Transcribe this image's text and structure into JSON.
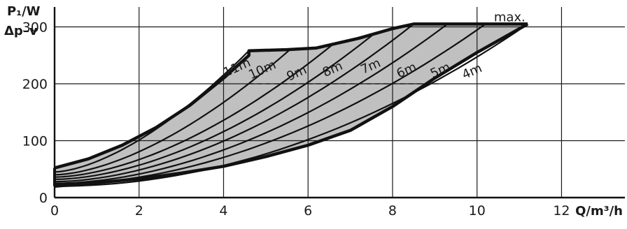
{
  "chart_data": {
    "type": "area",
    "ylabel_top": "P₁/W",
    "ylabel_bottom": "Δp–v",
    "xlabel": "Q/m³/h",
    "xlim": [
      0,
      13.5
    ],
    "ylim": [
      0,
      335
    ],
    "x_ticks": [
      0,
      2,
      4,
      6,
      8,
      10,
      12
    ],
    "x_tick_labels": [
      "0",
      "2",
      "4",
      "6",
      "8",
      "10",
      "12"
    ],
    "y_ticks": [
      0,
      100,
      200,
      300
    ],
    "y_tick_labels": [
      "0",
      "100",
      "200",
      "300"
    ],
    "grid": true,
    "dashed_reference": {
      "y": 200,
      "x_from": 4.6,
      "x_to": 9.1
    },
    "boundary_upper": {
      "x": [
        0,
        0.8,
        1.6,
        2.4,
        3.2,
        4.0,
        4.6,
        4.6,
        5.5,
        6.2,
        7.2,
        8.0,
        8.5,
        9.0,
        10.0,
        11.2
      ],
      "y": [
        52,
        68,
        92,
        123,
        162,
        210,
        250,
        258,
        260,
        263,
        280,
        297,
        305,
        305,
        305,
        305
      ]
    },
    "boundary_lower": {
      "x": [
        0,
        1,
        2,
        3,
        4,
        5,
        6,
        7,
        8,
        9,
        10,
        11.2
      ],
      "y": [
        20,
        26,
        33,
        43,
        55,
        72,
        92,
        118,
        160,
        210,
        255,
        305
      ]
    },
    "series": [
      {
        "name": "11m",
        "start": 45,
        "end_x": 4.6,
        "end_y": 258,
        "exp": 1.6
      },
      {
        "name": "10m",
        "start": 40,
        "end_x": 5.6,
        "end_y": 262,
        "exp": 1.65
      },
      {
        "name": "9m",
        "start": 36,
        "end_x": 6.6,
        "end_y": 270,
        "exp": 1.7
      },
      {
        "name": "8m",
        "start": 32,
        "end_x": 7.6,
        "end_y": 290,
        "exp": 1.75
      },
      {
        "name": "7m",
        "start": 28,
        "end_x": 8.5,
        "end_y": 305,
        "exp": 1.8
      },
      {
        "name": "6m",
        "start": 25,
        "end_x": 9.3,
        "end_y": 305,
        "exp": 1.85
      },
      {
        "name": "5m",
        "start": 23,
        "end_x": 10.2,
        "end_y": 305,
        "exp": 1.9
      },
      {
        "name": "4m",
        "start": 20,
        "end_x": 11.2,
        "end_y": 305,
        "exp": 2.0
      }
    ],
    "annotations": [
      {
        "text": "max.",
        "x": 10.4,
        "y": 310
      }
    ],
    "curve_labels": [
      {
        "text": "11m",
        "x": 4.05,
        "y": 212
      },
      {
        "text": "10m",
        "x": 4.65,
        "y": 208
      },
      {
        "text": "9m",
        "x": 5.55,
        "y": 205
      },
      {
        "text": "8m",
        "x": 6.4,
        "y": 212
      },
      {
        "text": "7m",
        "x": 7.3,
        "y": 217
      },
      {
        "text": "6m",
        "x": 8.15,
        "y": 210
      },
      {
        "text": "5m",
        "x": 8.95,
        "y": 210
      },
      {
        "text": "4m",
        "x": 9.7,
        "y": 208
      }
    ],
    "colors": {
      "fill": "#c0c0c0",
      "line": "#111111",
      "grid": "#1a1a1a"
    }
  }
}
